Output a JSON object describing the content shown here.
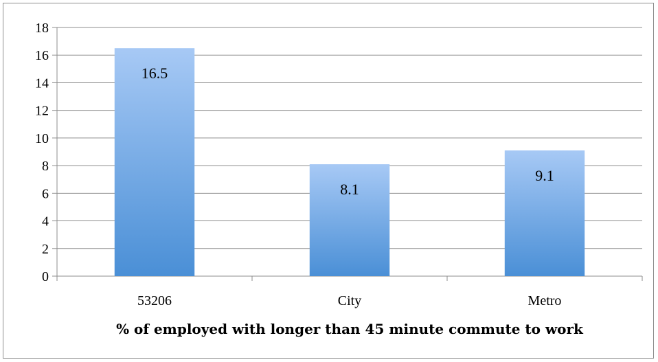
{
  "chart_data": {
    "type": "bar",
    "categories": [
      "53206",
      "City",
      "Metro"
    ],
    "values": [
      16.5,
      8.1,
      9.1
    ],
    "data_labels": [
      "16.5",
      "8.1",
      "9.1"
    ],
    "title": "",
    "xlabel": "% of employed with longer than 45 minute commute to work",
    "ylabel": "",
    "ylim": [
      0,
      18
    ],
    "yticks": [
      0,
      2,
      4,
      6,
      8,
      10,
      12,
      14,
      16,
      18
    ],
    "grid": true,
    "legend": "none",
    "colors": {
      "bar_top": "#a7c9f5",
      "bar_bottom": "#4a8fd6",
      "grid": "#8c8c8c",
      "axis": "#8c8c8c"
    }
  }
}
